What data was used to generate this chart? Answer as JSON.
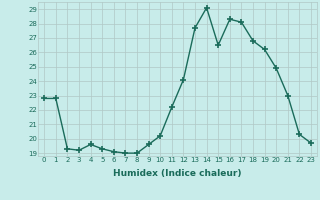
{
  "x": [
    0,
    1,
    2,
    3,
    4,
    5,
    6,
    7,
    8,
    9,
    10,
    11,
    12,
    13,
    14,
    15,
    16,
    17,
    18,
    19,
    20,
    21,
    22,
    23
  ],
  "y": [
    22.8,
    22.8,
    19.3,
    19.2,
    19.6,
    19.3,
    19.1,
    19.0,
    19.0,
    19.6,
    20.2,
    22.2,
    24.1,
    27.7,
    29.1,
    26.5,
    28.3,
    28.1,
    26.8,
    26.2,
    24.9,
    23.0,
    20.3,
    19.7
  ],
  "line_color": "#1a6b5a",
  "marker": "+",
  "markersize": 4,
  "markeredgewidth": 1.2,
  "linewidth": 1.0,
  "xlabel": "Humidex (Indice chaleur)",
  "xlim": [
    -0.5,
    23.5
  ],
  "ylim": [
    18.8,
    29.5
  ],
  "yticks": [
    19,
    20,
    21,
    22,
    23,
    24,
    25,
    26,
    27,
    28,
    29
  ],
  "xticks": [
    0,
    1,
    2,
    3,
    4,
    5,
    6,
    7,
    8,
    9,
    10,
    11,
    12,
    13,
    14,
    15,
    16,
    17,
    18,
    19,
    20,
    21,
    22,
    23
  ],
  "bg_color": "#c8ecea",
  "grid_color": "#b0c8c6",
  "tick_color": "#1a6b5a",
  "label_color": "#1a6b5a",
  "xlabel_fontsize": 6.5,
  "tick_fontsize": 5.0
}
